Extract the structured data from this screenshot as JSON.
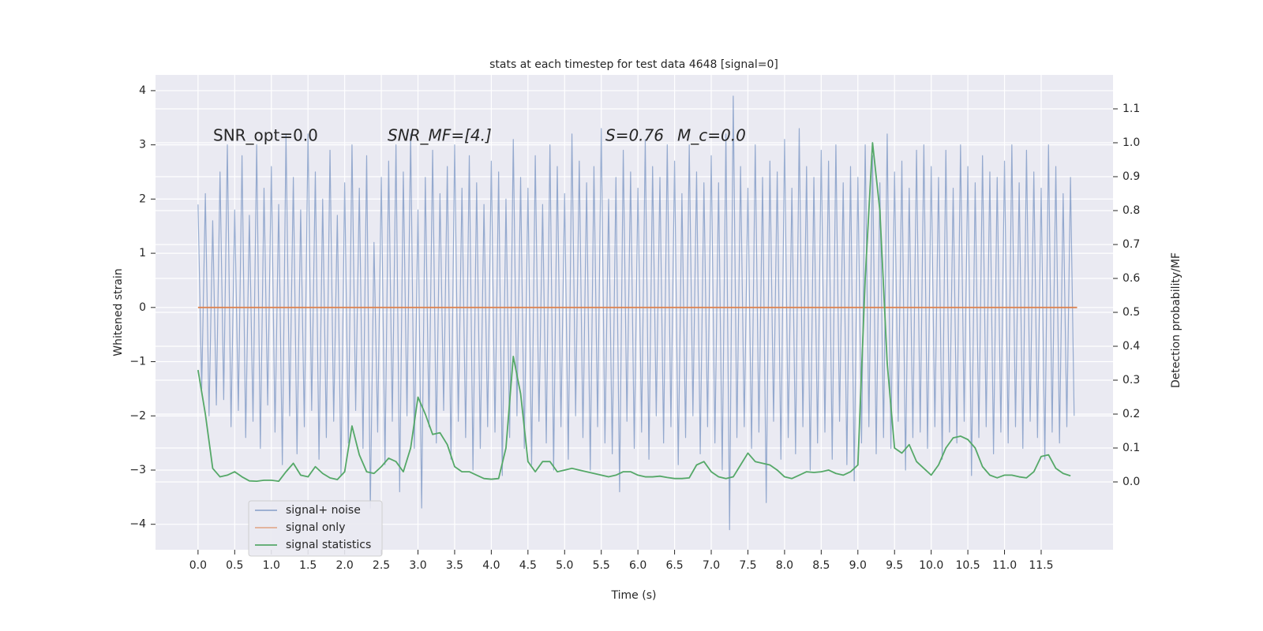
{
  "chart_data": {
    "type": "line",
    "title": "stats at each timestep for test data 4648 [signal=0]",
    "xlabel": "Time (s)",
    "ylabel": "Whitened strain",
    "y2label": "Detection probability/MF",
    "annotations": [
      "SNR_opt=0.0",
      "SNR_MF=[4.]",
      "S=0.76",
      "M_c=0.0"
    ],
    "xlim": [
      -0.58,
      12.48
    ],
    "ylim": [
      -4.47,
      4.29
    ],
    "y2lim": [
      -0.2,
      1.2
    ],
    "xticks": [
      {
        "value": 0,
        "label": "0.0"
      },
      {
        "value": 0.5,
        "label": "0.5"
      },
      {
        "value": 1,
        "label": "1.0"
      },
      {
        "value": 1.5,
        "label": "1.5"
      },
      {
        "value": 2,
        "label": "2.0"
      },
      {
        "value": 2.5,
        "label": "2.5"
      },
      {
        "value": 3,
        "label": "3.0"
      },
      {
        "value": 3.5,
        "label": "3.5"
      },
      {
        "value": 4,
        "label": "4.0"
      },
      {
        "value": 4.5,
        "label": "4.5"
      },
      {
        "value": 5,
        "label": "5.0"
      },
      {
        "value": 5.5,
        "label": "5.5"
      },
      {
        "value": 6,
        "label": "6.0"
      },
      {
        "value": 6.5,
        "label": "6.5"
      },
      {
        "value": 7,
        "label": "7.0"
      },
      {
        "value": 7.5,
        "label": "7.5"
      },
      {
        "value": 8,
        "label": "8.0"
      },
      {
        "value": 8.5,
        "label": "8.5"
      },
      {
        "value": 9,
        "label": "9.0"
      },
      {
        "value": 9.5,
        "label": "9.5"
      },
      {
        "value": 10,
        "label": "10.0"
      },
      {
        "value": 10.5,
        "label": "10.5"
      },
      {
        "value": 11,
        "label": "11.0"
      },
      {
        "value": 11.5,
        "label": "11.5"
      }
    ],
    "yticks": [
      {
        "value": -4,
        "label": "−4"
      },
      {
        "value": -3,
        "label": "−3"
      },
      {
        "value": -2,
        "label": "−2"
      },
      {
        "value": -1,
        "label": "−1"
      },
      0,
      1,
      2,
      3,
      4
    ],
    "y2ticks": [
      {
        "value": 0,
        "label": "0.0"
      },
      {
        "value": 0.1,
        "label": "0.1"
      },
      {
        "value": 0.2,
        "label": "0.2"
      },
      {
        "value": 0.3,
        "label": "0.3"
      },
      {
        "value": 0.4,
        "label": "0.4"
      },
      {
        "value": 0.5,
        "label": "0.5"
      },
      {
        "value": 0.6,
        "label": "0.6"
      },
      {
        "value": 0.7,
        "label": "0.7"
      },
      {
        "value": 0.8,
        "label": "0.8"
      },
      {
        "value": 0.9,
        "label": "0.9"
      },
      {
        "value": 1,
        "label": "1.0"
      },
      {
        "value": 1.1,
        "label": "1.1"
      }
    ],
    "grid": true,
    "legend_loc": "lower left",
    "series": [
      {
        "name": "signal+ noise",
        "color": "#4c72b0",
        "x": [
          0,
          0.05,
          0.1,
          0.15,
          0.2,
          0.25,
          0.3,
          0.35,
          0.4,
          0.45,
          0.5,
          0.55,
          0.6,
          0.65,
          0.7,
          0.75,
          0.8,
          0.85,
          0.9,
          0.95,
          1,
          1.05,
          1.1,
          1.15,
          1.2,
          1.25,
          1.3,
          1.35,
          1.4,
          1.45,
          1.5,
          1.55,
          1.6,
          1.65,
          1.7,
          1.75,
          1.8,
          1.85,
          1.9,
          1.95,
          2,
          2.05,
          2.1,
          2.15,
          2.2,
          2.25,
          2.3,
          2.35,
          2.4,
          2.45,
          2.5,
          2.55,
          2.6,
          2.65,
          2.7,
          2.75,
          2.8,
          2.85,
          2.9,
          2.95,
          3,
          3.05,
          3.1,
          3.15,
          3.2,
          3.25,
          3.3,
          3.35,
          3.4,
          3.45,
          3.5,
          3.55,
          3.6,
          3.65,
          3.7,
          3.75,
          3.8,
          3.85,
          3.9,
          3.95,
          4,
          4.05,
          4.1,
          4.15,
          4.2,
          4.25,
          4.3,
          4.35,
          4.4,
          4.45,
          4.5,
          4.55,
          4.6,
          4.65,
          4.7,
          4.75,
          4.8,
          4.85,
          4.9,
          4.95,
          5,
          5.05,
          5.1,
          5.15,
          5.2,
          5.25,
          5.3,
          5.35,
          5.4,
          5.45,
          5.5,
          5.55,
          5.6,
          5.65,
          5.7,
          5.75,
          5.8,
          5.85,
          5.9,
          5.95,
          6,
          6.05,
          6.1,
          6.15,
          6.2,
          6.25,
          6.3,
          6.35,
          6.4,
          6.45,
          6.5,
          6.55,
          6.6,
          6.65,
          6.7,
          6.75,
          6.8,
          6.85,
          6.9,
          6.95,
          7,
          7.05,
          7.1,
          7.15,
          7.2,
          7.25,
          7.3,
          7.35,
          7.4,
          7.45,
          7.5,
          7.55,
          7.6,
          7.65,
          7.7,
          7.75,
          7.8,
          7.85,
          7.9,
          7.95,
          8,
          8.05,
          8.1,
          8.15,
          8.2,
          8.25,
          8.3,
          8.35,
          8.4,
          8.45,
          8.5,
          8.55,
          8.6,
          8.65,
          8.7,
          8.75,
          8.8,
          8.85,
          8.9,
          8.95,
          9,
          9.05,
          9.1,
          9.15,
          9.2,
          9.25,
          9.3,
          9.35,
          9.4,
          9.45,
          9.5,
          9.55,
          9.6,
          9.65,
          9.7,
          9.75,
          9.8,
          9.85,
          9.9,
          9.95,
          10,
          10.05,
          10.1,
          10.15,
          10.2,
          10.25,
          10.3,
          10.35,
          10.4,
          10.45,
          10.5,
          10.55,
          10.6,
          10.65,
          10.7,
          10.75,
          10.8,
          10.85,
          10.9,
          10.95,
          11,
          11.05,
          11.1,
          11.15,
          11.2,
          11.25,
          11.3,
          11.35,
          11.4,
          11.45,
          11.5,
          11.55,
          11.6,
          11.65,
          11.7,
          11.75,
          11.8,
          11.85,
          11.9,
          11.95
        ],
        "values": [
          1.9,
          -1.5,
          2.1,
          -2.0,
          1.6,
          -1.8,
          2.5,
          -1.7,
          3.0,
          -2.2,
          1.8,
          -1.9,
          2.8,
          -2.4,
          1.7,
          -2.1,
          3.0,
          -2.6,
          2.2,
          -1.8,
          2.6,
          -2.3,
          1.9,
          -2.9,
          3.2,
          -2.0,
          2.4,
          -2.7,
          1.8,
          -2.2,
          3.2,
          -1.9,
          2.5,
          -2.8,
          2.0,
          -2.4,
          2.9,
          -2.1,
          1.7,
          -3.1,
          2.3,
          -2.5,
          3.0,
          -1.9,
          2.2,
          -2.6,
          2.8,
          -3.7,
          1.2,
          -2.3,
          2.4,
          -2.9,
          2.7,
          -2.1,
          3.0,
          -3.4,
          2.5,
          -2.0,
          3.2,
          -2.6,
          1.8,
          -3.7,
          2.4,
          -2.2,
          2.9,
          -2.5,
          2.1,
          -1.9,
          2.6,
          -2.8,
          3.0,
          -2.1,
          2.2,
          -2.4,
          2.8,
          -3.0,
          2.3,
          -2.6,
          1.9,
          -2.2,
          2.7,
          -2.3,
          2.5,
          -3.1,
          2.0,
          -2.4,
          3.1,
          -2.0,
          2.4,
          -2.6,
          2.2,
          -2.9,
          2.8,
          -2.1,
          1.9,
          -2.5,
          3.0,
          -3.0,
          2.6,
          -2.2,
          2.1,
          -2.8,
          3.2,
          -2.0,
          2.7,
          -2.4,
          2.3,
          -3.0,
          2.6,
          -2.2,
          3.3,
          -2.5,
          2.0,
          -2.7,
          2.4,
          -3.4,
          2.9,
          -2.1,
          2.5,
          -2.6,
          2.2,
          -2.3,
          3.1,
          -2.8,
          2.6,
          -2.0,
          2.4,
          -2.5,
          3.0,
          -2.2,
          2.7,
          -2.9,
          2.1,
          -2.4,
          3.0,
          -2.0,
          2.5,
          -2.7,
          2.3,
          -2.2,
          2.8,
          -2.5,
          2.3,
          -3.0,
          3.2,
          -4.1,
          3.9,
          -2.4,
          2.6,
          -2.2,
          2.2,
          -2.6,
          3.0,
          -2.3,
          2.4,
          -3.6,
          2.7,
          -2.1,
          2.5,
          -2.8,
          3.1,
          -2.4,
          2.2,
          -2.7,
          3.3,
          -2.2,
          2.6,
          -3.0,
          2.4,
          -2.5,
          2.9,
          -2.3,
          2.7,
          -2.8,
          3.0,
          -2.1,
          2.3,
          -2.9,
          2.6,
          -3.2,
          2.4,
          -2.5,
          3.0,
          -2.2,
          2.8,
          -2.7,
          2.3,
          -2.4,
          3.2,
          -2.6,
          2.5,
          -2.1,
          2.7,
          -3.0,
          2.2,
          -2.4,
          2.9,
          -2.3,
          3.0,
          -2.6,
          2.6,
          -2.2,
          2.4,
          -2.8,
          2.9,
          -2.3,
          2.2,
          -2.5,
          3.0,
          -2.1,
          2.6,
          -3.1,
          2.3,
          -2.4,
          2.8,
          -2.2,
          2.5,
          -2.7,
          2.4,
          -2.3,
          2.7,
          -2.5,
          3.0,
          -2.2,
          2.3,
          -2.6,
          2.9,
          -2.1,
          2.5,
          -2.4,
          2.2,
          -2.8,
          3.0,
          -2.3,
          2.6,
          -2.5,
          2.1,
          -2.2,
          2.4,
          -2.0
        ]
      },
      {
        "name": "signal only",
        "color": "#dd8452",
        "x": [
          0,
          11.99
        ],
        "values": [
          0,
          0
        ]
      },
      {
        "name": "signal statistics",
        "color": "#55a868",
        "axis": "y2",
        "x": [
          0,
          0.1,
          0.2,
          0.3,
          0.4,
          0.5,
          0.6,
          0.7,
          0.8,
          0.9,
          1,
          1.1,
          1.2,
          1.3,
          1.4,
          1.5,
          1.6,
          1.7,
          1.8,
          1.9,
          2,
          2.1,
          2.2,
          2.3,
          2.4,
          2.5,
          2.6,
          2.7,
          2.8,
          2.9,
          3,
          3.1,
          3.2,
          3.3,
          3.4,
          3.5,
          3.6,
          3.7,
          3.8,
          3.9,
          4,
          4.1,
          4.2,
          4.3,
          4.4,
          4.5,
          4.6,
          4.7,
          4.8,
          4.9,
          5,
          5.1,
          5.2,
          5.3,
          5.4,
          5.5,
          5.6,
          5.7,
          5.8,
          5.9,
          6,
          6.1,
          6.2,
          6.3,
          6.4,
          6.5,
          6.6,
          6.7,
          6.8,
          6.9,
          7,
          7.1,
          7.2,
          7.3,
          7.4,
          7.5,
          7.6,
          7.7,
          7.8,
          7.9,
          8,
          8.1,
          8.2,
          8.3,
          8.4,
          8.5,
          8.6,
          8.7,
          8.8,
          8.9,
          9,
          9.1,
          9.2,
          9.3,
          9.4,
          9.5,
          9.6,
          9.7,
          9.8,
          9.9,
          10,
          10.1,
          10.2,
          10.3,
          10.4,
          10.5,
          10.6,
          10.7,
          10.8,
          10.9,
          11,
          11.1,
          11.2,
          11.3,
          11.4,
          11.5,
          11.6,
          11.7,
          11.8,
          11.9
        ],
        "values": [
          0.33,
          0.2,
          0.04,
          0.015,
          0.02,
          0.03,
          0.015,
          0.003,
          0.002,
          0.005,
          0.005,
          0.002,
          0.03,
          0.055,
          0.02,
          0.015,
          0.045,
          0.025,
          0.012,
          0.007,
          0.03,
          0.165,
          0.08,
          0.03,
          0.025,
          0.045,
          0.07,
          0.06,
          0.03,
          0.1,
          0.25,
          0.2,
          0.14,
          0.145,
          0.11,
          0.045,
          0.03,
          0.03,
          0.02,
          0.01,
          0.008,
          0.01,
          0.1,
          0.37,
          0.26,
          0.06,
          0.03,
          0.06,
          0.06,
          0.03,
          0.035,
          0.04,
          0.035,
          0.03,
          0.025,
          0.02,
          0.015,
          0.02,
          0.03,
          0.03,
          0.02,
          0.015,
          0.015,
          0.017,
          0.013,
          0.01,
          0.01,
          0.012,
          0.05,
          0.06,
          0.03,
          0.015,
          0.01,
          0.015,
          0.05,
          0.085,
          0.06,
          0.055,
          0.05,
          0.035,
          0.015,
          0.01,
          0.02,
          0.03,
          0.028,
          0.03,
          0.035,
          0.025,
          0.02,
          0.03,
          0.05,
          0.6,
          1.0,
          0.8,
          0.35,
          0.1,
          0.085,
          0.11,
          0.06,
          0.04,
          0.02,
          0.05,
          0.1,
          0.13,
          0.135,
          0.125,
          0.1,
          0.045,
          0.02,
          0.012,
          0.02,
          0.02,
          0.015,
          0.012,
          0.03,
          0.075,
          0.08,
          0.04,
          0.025,
          0.018
        ]
      }
    ]
  }
}
